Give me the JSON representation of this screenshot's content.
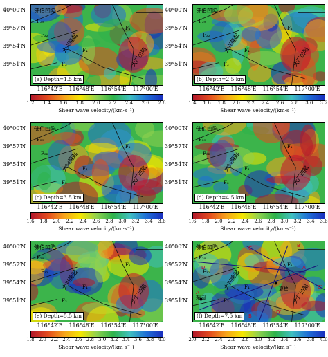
{
  "panels": [
    {
      "label": "(a) Depth=1.5 km",
      "cbar_ticks": [
        "1.2",
        "1.4",
        "1.6",
        "1.8",
        "2.0",
        "2.2",
        "2.4",
        "2.6",
        "2.8"
      ]
    },
    {
      "label": "(b) Depth=2.5 km",
      "cbar_ticks": [
        "1.4",
        "1.6",
        "1.8",
        "2.0",
        "2.2",
        "2.4",
        "2.6",
        "2.8",
        "3.0",
        "3.2"
      ]
    },
    {
      "label": "(c) Depth=3.5 km",
      "cbar_ticks": [
        "1.6",
        "1.8",
        "2.0",
        "2.2",
        "2.4",
        "2.6",
        "2.8",
        "3.0",
        "3.2",
        "3.4",
        "3.6"
      ]
    },
    {
      "label": "(d) Depth=4.5 km",
      "cbar_ticks": [
        "1.6",
        "1.8",
        "2.0",
        "2.2",
        "2.4",
        "2.6",
        "2.8",
        "3.0",
        "3.2",
        "3.4",
        "3.6"
      ]
    },
    {
      "label": "(e) Depth=5.5 km",
      "cbar_ticks": [
        "1.8",
        "2.0",
        "2.2",
        "2.4",
        "2.6",
        "2.8",
        "3.0",
        "3.2",
        "3.4",
        "3.6",
        "3.8",
        "4.0"
      ]
    },
    {
      "label": "(f) Depth=7.5 km",
      "cbar_ticks": [
        "2.0",
        "2.2",
        "2.4",
        "2.6",
        "2.8",
        "3.0",
        "3.2",
        "3.4",
        "3.6",
        "3.8",
        "4.0"
      ]
    }
  ],
  "lat_ticks": [
    "40°00′N",
    "39°57′N",
    "39°54′N",
    "39°51′N"
  ],
  "lon_ticks": [
    "116°42′E",
    "116°48′E",
    "116°54′E",
    "117°00′E"
  ],
  "colorbar_label": "Shear wave velocity/(km·s⁻¹)",
  "geo_labels": {
    "shunyi": "佛伯凹陷",
    "daxing": "大兴隆起",
    "dachang": "大厂凹陷",
    "faults": [
      "F₂₉",
      "F₃₂",
      "F₁",
      "F₄",
      "F₃"
    ]
  },
  "profile_labels": [
    "A",
    "A′",
    "B",
    "B′",
    "C",
    "C′",
    "D",
    "D′"
  ],
  "towns": [
    "梨园",
    "夏垫"
  ],
  "colors": {
    "low": "#c8102e",
    "mid": "#f5e600",
    "high": "#1a2fbf"
  }
}
